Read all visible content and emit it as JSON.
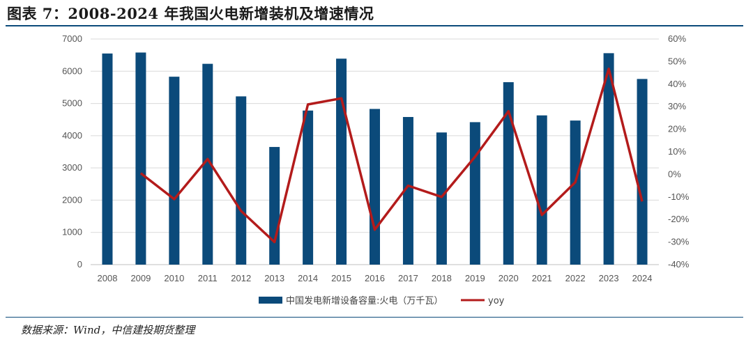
{
  "title": "图表 7：2008-2024 年我国火电新增装机及增速情况",
  "source": "数据来源：Wind，中信建投期货整理",
  "colors": {
    "bar": "#0b4a7a",
    "line": "#b31b1b",
    "grid": "#d9d9d9",
    "rule": "#0b4a7a"
  },
  "chart_data": {
    "type": "bar",
    "categories": [
      "2008",
      "2009",
      "2010",
      "2011",
      "2012",
      "2013",
      "2014",
      "2015",
      "2016",
      "2017",
      "2018",
      "2019",
      "2020",
      "2021",
      "2022",
      "2023",
      "2024"
    ],
    "series": [
      {
        "name": "中国发电新增设备容量:火电（万千瓦）",
        "type": "bar",
        "axis": "left",
        "values": [
          6550,
          6580,
          5830,
          6230,
          5220,
          3650,
          4780,
          6390,
          4830,
          4580,
          4100,
          4420,
          5660,
          4630,
          4470,
          6560,
          5760
        ]
      },
      {
        "name": "yoy",
        "type": "line",
        "axis": "right",
        "unit": "%",
        "values": [
          null,
          0.5,
          -11,
          6.8,
          -16.2,
          -30,
          31,
          33.7,
          -24.5,
          -5,
          -10,
          7.8,
          28,
          -18,
          -3.5,
          46.8,
          -12
        ]
      }
    ],
    "y_left": {
      "min": 0,
      "max": 7000,
      "ticks": [
        "0",
        "1000",
        "2000",
        "3000",
        "4000",
        "5000",
        "6000",
        "7000"
      ]
    },
    "y_right": {
      "min": -40,
      "max": 60,
      "ticks": [
        "-40%",
        "-30%",
        "-20%",
        "-10%",
        "0%",
        "10%",
        "20%",
        "30%",
        "40%",
        "50%",
        "60%"
      ]
    },
    "grid": true,
    "legend": "bottom"
  }
}
